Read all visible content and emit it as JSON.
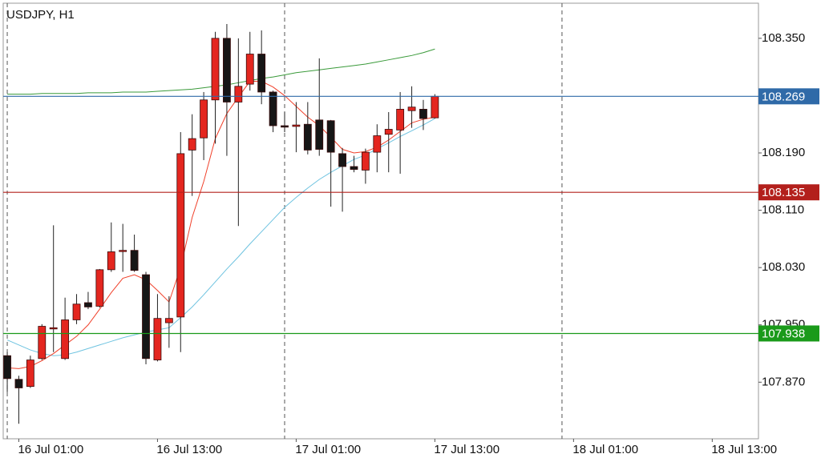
{
  "chart_data": {
    "type": "candlestick",
    "title": "USDJPY, H1",
    "x": [
      0,
      1,
      2,
      3,
      4,
      5,
      6,
      7,
      8,
      9,
      10,
      11,
      12,
      13,
      14,
      15,
      16,
      17,
      18,
      19,
      20,
      21,
      22,
      23,
      24,
      25,
      26,
      27,
      28,
      29,
      30,
      31,
      32,
      33,
      34,
      35,
      36,
      37
    ],
    "open": [
      107.907,
      107.874,
      107.864,
      107.903,
      107.945,
      107.903,
      107.957,
      107.981,
      107.976,
      108.027,
      108.053,
      108.054,
      108.02,
      107.901,
      107.953,
      107.961,
      108.194,
      108.211,
      108.264,
      108.35,
      108.261,
      108.286,
      108.328,
      108.275,
      108.228,
      108.227,
      108.23,
      108.236,
      108.235,
      108.189,
      108.171,
      108.166,
      108.191,
      108.216,
      108.222,
      108.249,
      108.251,
      108.239
    ],
    "high": [
      107.912,
      107.879,
      107.907,
      107.951,
      108.089,
      107.988,
      107.993,
      107.996,
      108.028,
      108.093,
      108.091,
      108.076,
      108.024,
      107.993,
      107.99,
      108.219,
      108.244,
      108.275,
      108.359,
      108.37,
      108.35,
      108.359,
      108.361,
      108.277,
      108.247,
      108.261,
      108.261,
      108.322,
      108.236,
      108.197,
      108.186,
      108.196,
      108.23,
      108.247,
      108.275,
      108.283,
      108.264,
      108.272
    ],
    "low": [
      107.856,
      107.812,
      107.862,
      107.901,
      107.912,
      107.901,
      107.951,
      107.972,
      107.974,
      108.024,
      108.024,
      108.024,
      107.895,
      107.899,
      107.918,
      107.912,
      108.13,
      108.18,
      108.203,
      108.186,
      108.088,
      108.277,
      108.258,
      108.219,
      108.219,
      108.191,
      108.188,
      108.186,
      108.115,
      108.108,
      108.163,
      108.147,
      108.163,
      108.163,
      108.161,
      108.225,
      108.222,
      108.238
    ],
    "close": [
      107.875,
      107.862,
      107.901,
      107.948,
      107.946,
      107.957,
      107.979,
      107.975,
      108.027,
      108.052,
      108.054,
      108.026,
      107.903,
      107.959,
      107.959,
      108.189,
      108.21,
      108.264,
      108.35,
      108.261,
      108.283,
      108.328,
      108.275,
      108.228,
      108.226,
      108.229,
      108.194,
      108.195,
      108.191,
      108.171,
      108.167,
      108.191,
      108.214,
      108.223,
      108.251,
      108.254,
      108.238,
      108.269
    ],
    "up_color": "#e4261f",
    "down_color": "#161616",
    "series": [
      {
        "color": "#3a9a3a",
        "values": [
          108.272,
          108.272,
          108.272,
          108.273,
          108.273,
          108.273,
          108.273,
          108.274,
          108.274,
          108.274,
          108.275,
          108.275,
          108.275,
          108.276,
          108.277,
          108.278,
          108.279,
          108.281,
          108.283,
          108.285,
          108.288,
          108.291,
          108.294,
          108.296,
          108.299,
          108.302,
          108.304,
          108.306,
          108.308,
          108.31,
          108.312,
          108.314,
          108.317,
          108.32,
          108.323,
          108.326,
          108.33,
          108.335
        ]
      },
      {
        "color": "#6ec3e0",
        "values": [
          107.929,
          107.922,
          107.915,
          107.91,
          107.907,
          107.908,
          107.912,
          107.917,
          107.922,
          107.927,
          107.932,
          107.936,
          107.94,
          107.943,
          107.946,
          107.96,
          107.975,
          107.992,
          108.01,
          108.028,
          108.045,
          108.063,
          108.08,
          108.097,
          108.114,
          108.128,
          108.141,
          108.153,
          108.163,
          108.172,
          108.181,
          108.187,
          108.196,
          108.204,
          108.213,
          108.221,
          108.229,
          108.238
        ]
      },
      {
        "color": "#f0402a",
        "values": [
          107.89,
          107.889,
          107.892,
          107.9,
          107.91,
          107.922,
          107.934,
          107.95,
          107.972,
          107.995,
          108.015,
          108.02,
          108.013,
          107.998,
          107.982,
          108.03,
          108.1,
          108.15,
          108.21,
          108.245,
          108.268,
          108.29,
          108.29,
          108.282,
          108.27,
          108.255,
          108.24,
          108.228,
          108.212,
          108.195,
          108.19,
          108.192,
          108.198,
          108.208,
          108.22,
          108.232,
          108.237,
          108.24
        ]
      }
    ],
    "levels": [
      {
        "value": 108.269,
        "color": "#2f6aa8"
      },
      {
        "value": 108.135,
        "color": "#b3201c"
      },
      {
        "value": 107.938,
        "color": "#1a9a1a"
      }
    ],
    "separators": [
      0,
      24,
      48
    ],
    "xlim": [
      -0.35,
      65
    ],
    "ylim": [
      107.791,
      108.399
    ],
    "xticks": [
      {
        "value": 1,
        "label": "16 Jul 01:00"
      },
      {
        "value": 13,
        "label": "16 Jul 13:00"
      },
      {
        "value": 25,
        "label": "17 Jul 01:00"
      },
      {
        "value": 37,
        "label": "17 Jul 13:00"
      },
      {
        "value": 49,
        "label": "18 Jul 01:00"
      },
      {
        "value": 61,
        "label": "18 Jul 13:00"
      }
    ],
    "yticks": [
      {
        "value": 108.35,
        "label": "108.350"
      },
      {
        "value": 108.19,
        "label": "108.190"
      },
      {
        "value": 108.11,
        "label": "108.110"
      },
      {
        "value": 108.03,
        "label": "108.030"
      },
      {
        "value": 107.95,
        "label": "107.950"
      },
      {
        "value": 107.87,
        "label": "107.870"
      }
    ]
  }
}
